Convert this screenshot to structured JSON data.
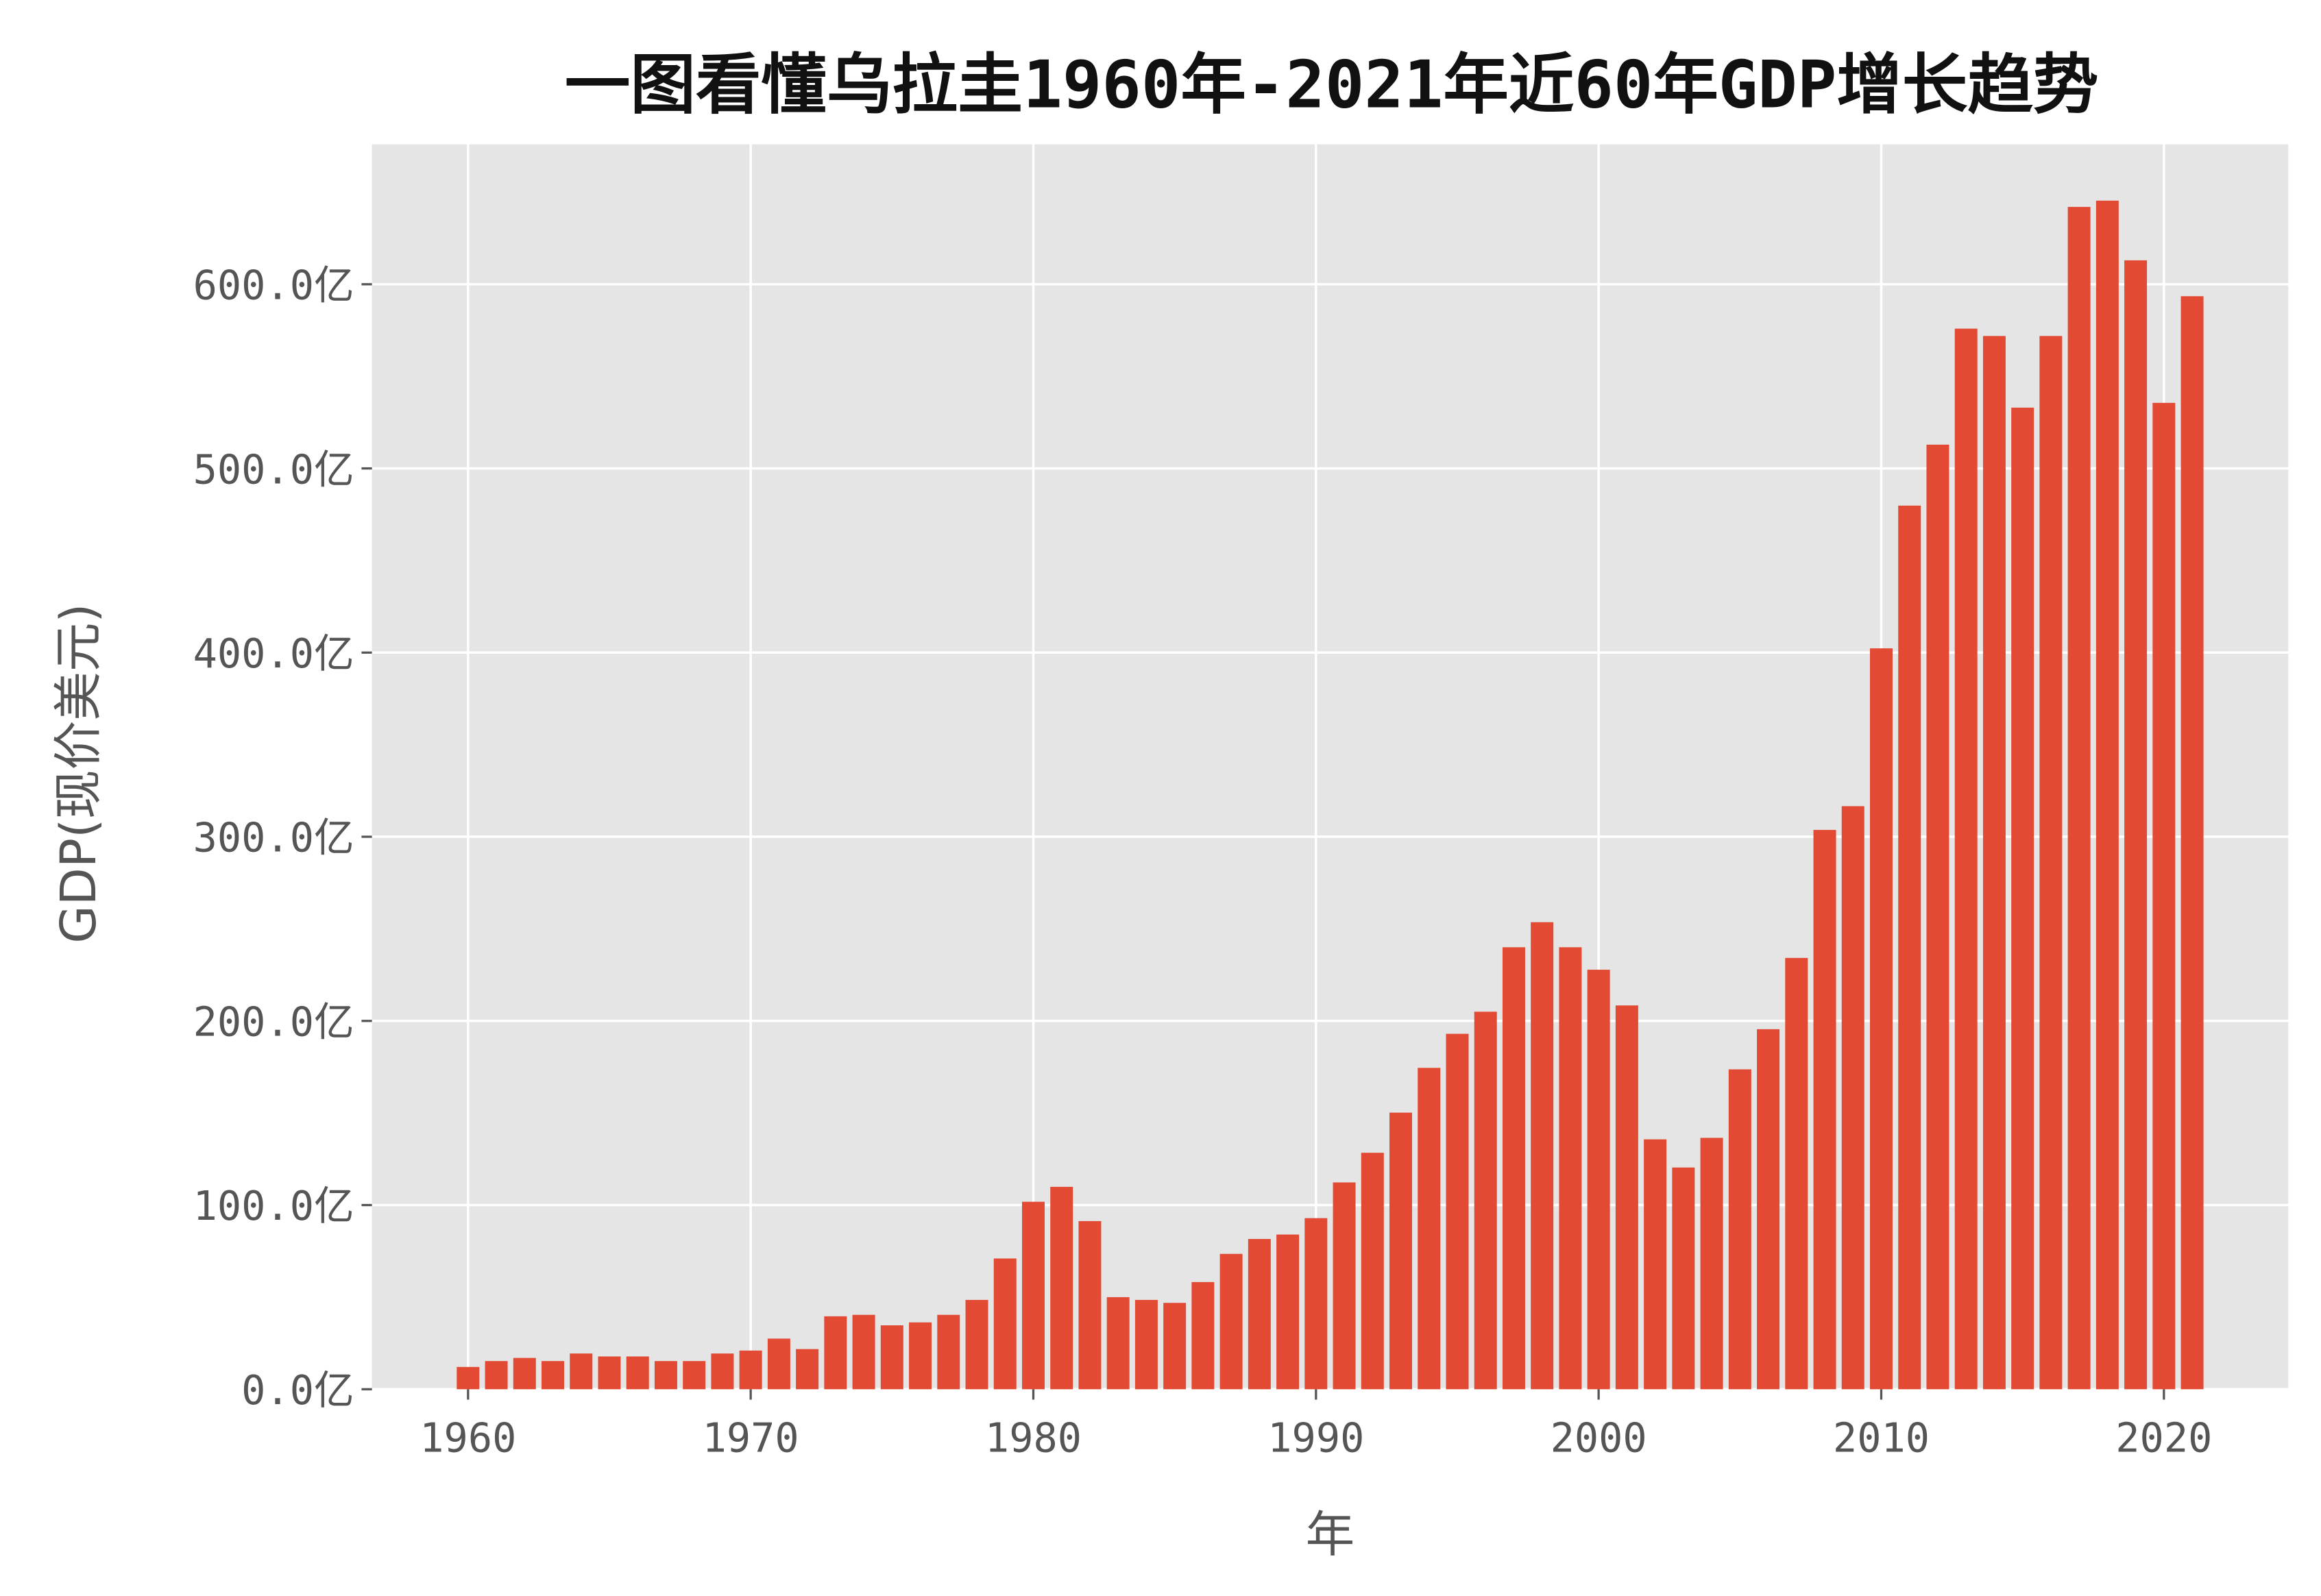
{
  "chart_data": {
    "type": "bar",
    "title": "一图看懂乌拉圭1960年-2021年近60年GDP增长趋势",
    "xlabel": "年",
    "ylabel": "GDP(现价美元)",
    "xlim": [
      1956.6,
      2024.4
    ],
    "ylim": [
      0,
      676
    ],
    "grid": true,
    "bar_color": "#E24A33",
    "background_color": "#E5E5E5",
    "x_ticks": [
      "1960",
      "1970",
      "1980",
      "1990",
      "2000",
      "2010",
      "2020"
    ],
    "y_ticks": [
      "0.0亿",
      "100.0亿",
      "200.0亿",
      "300.0亿",
      "400.0亿",
      "500.0亿",
      "600.0亿"
    ],
    "x": [
      1960,
      1961,
      1962,
      1963,
      1964,
      1965,
      1966,
      1967,
      1968,
      1969,
      1970,
      1971,
      1972,
      1973,
      1974,
      1975,
      1976,
      1977,
      1978,
      1979,
      1980,
      1981,
      1982,
      1983,
      1984,
      1985,
      1986,
      1987,
      1988,
      1989,
      1990,
      1991,
      1992,
      1993,
      1994,
      1995,
      1996,
      1997,
      1998,
      1999,
      2000,
      2001,
      2002,
      2003,
      2004,
      2005,
      2006,
      2007,
      2008,
      2009,
      2010,
      2011,
      2012,
      2013,
      2014,
      2015,
      2016,
      2017,
      2018,
      2019,
      2020,
      2021
    ],
    "values": [
      12.1,
      15.3,
      17.0,
      15.3,
      19.4,
      17.8,
      17.8,
      15.3,
      15.3,
      19.4,
      21.0,
      27.5,
      21.8,
      39.6,
      40.4,
      34.7,
      36.3,
      40.4,
      48.5,
      71.0,
      101.8,
      109.9,
      91.3,
      50.0,
      48.5,
      46.9,
      58.2,
      73.5,
      81.6,
      84.0,
      92.9,
      112.3,
      128.4,
      150.2,
      174.5,
      193.0,
      205.0,
      240.0,
      253.6,
      240.0,
      227.8,
      208.4,
      135.7,
      120.4,
      136.5,
      173.7,
      195.5,
      234.2,
      303.7,
      316.6,
      402.3,
      479.8,
      512.9,
      575.9,
      571.9,
      533.0,
      571.9,
      642.0,
      645.4,
      613.0,
      535.6,
      593.5
    ],
    "unit": "亿"
  }
}
